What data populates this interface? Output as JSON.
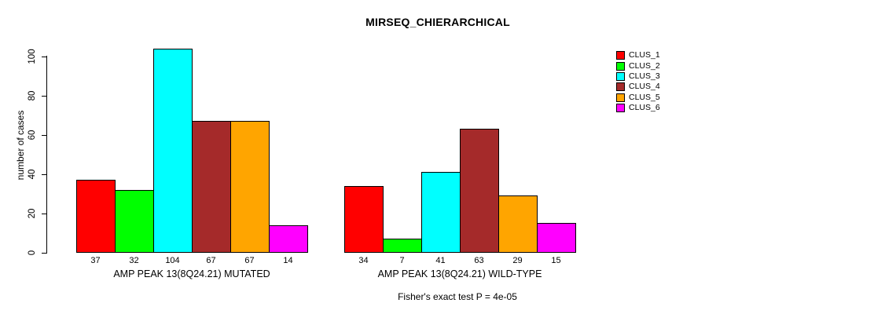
{
  "chart_data": {
    "type": "bar",
    "title": "MIRSEQ_CHIERARCHICAL",
    "ylabel": "number of cases",
    "xlabel": "",
    "yticks": [
      0,
      20,
      40,
      60,
      80,
      100
    ],
    "ylim": [
      0,
      104
    ],
    "grid": false,
    "bar_value_labels": true,
    "categories": [
      "AMP PEAK 13(8Q24.21) MUTATED",
      "AMP PEAK 13(8Q24.21) WILD-TYPE"
    ],
    "series": [
      {
        "name": "CLUS_1",
        "color": "#FF0000",
        "values": [
          37,
          34
        ]
      },
      {
        "name": "CLUS_2",
        "color": "#00FF00",
        "values": [
          32,
          7
        ]
      },
      {
        "name": "CLUS_3",
        "color": "#00FFFF",
        "values": [
          104,
          41
        ]
      },
      {
        "name": "CLUS_4",
        "color": "#A52A2A",
        "values": [
          67,
          63
        ]
      },
      {
        "name": "CLUS_5",
        "color": "#FFA500",
        "values": [
          67,
          29
        ]
      },
      {
        "name": "CLUS_6",
        "color": "#FF00FF",
        "values": [
          14,
          15
        ]
      }
    ],
    "legend_position": "right-outside-top",
    "footnote": "Fisher's exact test P = 4e-05"
  }
}
